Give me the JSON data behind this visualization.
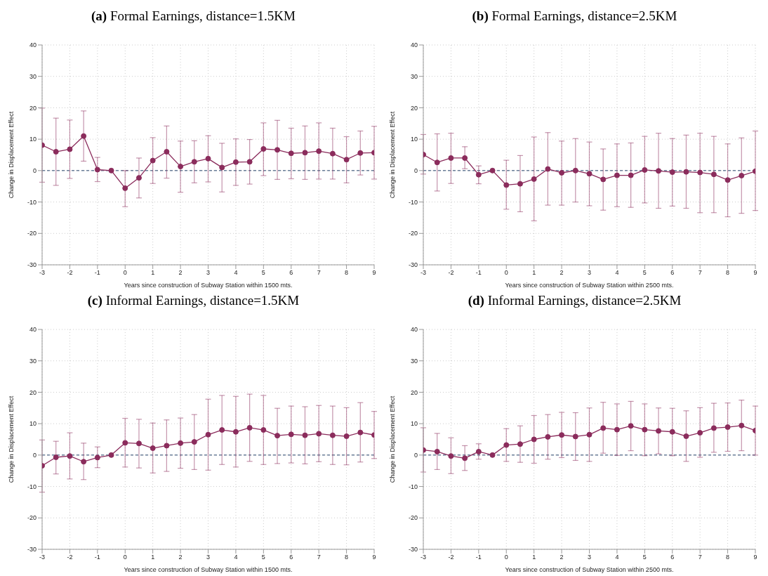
{
  "chart_data": [
    {
      "type": "line",
      "title": "(a) Formal Earnings, distance=1.5KM",
      "xlabel": "Years since construction of Subway Station within 1500 mts.",
      "ylabel": "Change in Displacement Effect",
      "x": [
        -3,
        -2.5,
        -2,
        -1.5,
        -1,
        -0.5,
        0,
        0.5,
        1,
        1.5,
        2,
        2.5,
        3,
        3.5,
        4,
        4.5,
        5,
        5.5,
        6,
        6.5,
        7,
        7.5,
        8,
        8.5,
        9
      ],
      "xlim": [
        -3,
        9
      ],
      "xticks": [
        -3,
        -2,
        -1,
        0,
        1,
        2,
        3,
        4,
        5,
        6,
        7,
        8,
        9
      ],
      "ylim": [
        -30,
        40
      ],
      "yticks": [
        -30,
        -20,
        -10,
        0,
        10,
        20,
        30,
        40
      ],
      "grid": true,
      "marker": "circle",
      "line_style": "solid",
      "series": [
        {
          "color": "#8b2c5c",
          "values": [
            8.1,
            6.0,
            6.8,
            11.0,
            0.3,
            0,
            -5.6,
            -2.3,
            3.2,
            6.0,
            1.3,
            2.8,
            3.8,
            1.0,
            2.7,
            2.8,
            6.9,
            6.6,
            5.5,
            5.7,
            6.2,
            5.4,
            3.5,
            5.6,
            5.7
          ],
          "errors": [
            [
              -3.7,
              19.9
            ],
            [
              -4.7,
              16.7
            ],
            [
              -2.5,
              16.1
            ],
            [
              3.0,
              19.0
            ],
            [
              -3.5,
              4.2
            ],
            null,
            [
              -11.5,
              0
            ],
            [
              -8.7,
              4.0
            ],
            [
              -4.1,
              10.5
            ],
            [
              -2.4,
              14.2
            ],
            [
              -6.9,
              9.4
            ],
            [
              -3.9,
              9.5
            ],
            [
              -3.6,
              11.1
            ],
            [
              -6.8,
              8.7
            ],
            [
              -4.7,
              10.1
            ],
            [
              -4.3,
              9.9
            ],
            [
              -1.6,
              15.2
            ],
            [
              -2.8,
              16.0
            ],
            [
              -2.6,
              13.5
            ],
            [
              -2.8,
              14.2
            ],
            [
              -2.7,
              15.2
            ],
            [
              -2.7,
              13.5
            ],
            [
              -3.9,
              10.8
            ],
            [
              -1.4,
              12.6
            ],
            [
              -2.7,
              14.1
            ]
          ]
        }
      ],
      "ref_lines": [
        {
          "axis": "y",
          "value": 0,
          "color": "#6b7f99",
          "line_style": "dashed"
        }
      ]
    },
    {
      "type": "line",
      "title": "(b) Formal Earnings, distance=2.5KM",
      "xlabel": "Years since construction of Subway Station within 2500 mts.",
      "ylabel": "Change in Displacement Effect",
      "x": [
        -3,
        -2.5,
        -2,
        -1.5,
        -1,
        -0.5,
        0,
        0.5,
        1,
        1.5,
        2,
        2.5,
        3,
        3.5,
        4,
        4.5,
        5,
        5.5,
        6,
        6.5,
        7,
        7.5,
        8,
        8.5,
        9
      ],
      "xlim": [
        -3,
        9
      ],
      "xticks": [
        -3,
        -2,
        -1,
        0,
        1,
        2,
        3,
        4,
        5,
        6,
        7,
        8,
        9
      ],
      "ylim": [
        -30,
        40
      ],
      "yticks": [
        -30,
        -20,
        -10,
        0,
        10,
        20,
        30,
        40
      ],
      "grid": true,
      "marker": "circle",
      "line_style": "solid",
      "series": [
        {
          "color": "#8b2c5c",
          "values": [
            5.1,
            2.6,
            4.0,
            4.0,
            -1.3,
            0,
            -4.6,
            -4.2,
            -2.7,
            0.5,
            -0.7,
            0,
            -1.0,
            -2.8,
            -1.5,
            -1.5,
            0.2,
            -0.1,
            -0.5,
            -0.4,
            -0.6,
            -1.2,
            -3.0,
            -1.6,
            -0.2
          ],
          "errors": [
            [
              -1.1,
              11.5
            ],
            [
              -6.5,
              11.7
            ],
            [
              -4.1,
              11.9
            ],
            [
              0.6,
              7.6
            ],
            [
              -4.2,
              1.5
            ],
            null,
            [
              -12.3,
              3.3
            ],
            [
              -13.1,
              4.8
            ],
            [
              -16.0,
              10.7
            ],
            [
              -11.0,
              12.1
            ],
            [
              -11.0,
              9.4
            ],
            [
              -10.0,
              10.2
            ],
            [
              -11.2,
              9.1
            ],
            [
              -12.6,
              6.9
            ],
            [
              -11.5,
              8.5
            ],
            [
              -11.7,
              8.8
            ],
            [
              -10.3,
              10.9
            ],
            [
              -12.0,
              11.9
            ],
            [
              -11.3,
              10.2
            ],
            [
              -12.0,
              11.3
            ],
            [
              -13.4,
              11.9
            ],
            [
              -13.4,
              10.9
            ],
            [
              -14.7,
              8.5
            ],
            [
              -13.6,
              10.4
            ],
            [
              -12.7,
              12.6
            ]
          ]
        }
      ],
      "ref_lines": [
        {
          "axis": "y",
          "value": 0,
          "color": "#6b7f99",
          "line_style": "dashed"
        }
      ]
    },
    {
      "type": "line",
      "title": "(c) Informal Earnings, distance=1.5KM",
      "xlabel": "Years since construction of Subway Station within 1500 mts.",
      "ylabel": "Change in Displacement Effect",
      "x": [
        -3,
        -2.5,
        -2,
        -1.5,
        -1,
        -0.5,
        0,
        0.5,
        1,
        1.5,
        2,
        2.5,
        3,
        3.5,
        4,
        4.5,
        5,
        5.5,
        6,
        6.5,
        7,
        7.5,
        8,
        8.5,
        9
      ],
      "xlim": [
        -3,
        9
      ],
      "xticks": [
        -3,
        -2,
        -1,
        0,
        1,
        2,
        3,
        4,
        5,
        6,
        7,
        8,
        9
      ],
      "ylim": [
        -30,
        40
      ],
      "yticks": [
        -30,
        -20,
        -10,
        0,
        10,
        20,
        30,
        40
      ],
      "grid": true,
      "marker": "circle",
      "line_style": "solid",
      "series": [
        {
          "color": "#8b2c5c",
          "values": [
            -3.4,
            -0.7,
            -0.3,
            -2.1,
            -0.8,
            0,
            3.9,
            3.7,
            2.2,
            3.0,
            3.8,
            4.2,
            6.5,
            8.0,
            7.4,
            8.7,
            8.0,
            6.2,
            6.6,
            6.3,
            6.8,
            6.3,
            6.0,
            7.2,
            6.4
          ],
          "errors": [
            [
              -11.8,
              4.8
            ],
            [
              -6.0,
              4.4
            ],
            [
              -7.6,
              7.1
            ],
            [
              -7.8,
              3.8
            ],
            [
              -4.0,
              2.6
            ],
            null,
            [
              -3.8,
              11.7
            ],
            [
              -4.1,
              11.4
            ],
            [
              -5.7,
              10.2
            ],
            [
              -5.2,
              11.2
            ],
            [
              -4.2,
              11.8
            ],
            [
              -4.6,
              12.9
            ],
            [
              -4.8,
              17.8
            ],
            [
              -3.0,
              19.0
            ],
            [
              -3.8,
              18.7
            ],
            [
              -2.0,
              19.4
            ],
            [
              -3.0,
              19.0
            ],
            [
              -2.7,
              14.9
            ],
            [
              -2.5,
              15.6
            ],
            [
              -2.8,
              15.4
            ],
            [
              -2.1,
              15.8
            ],
            [
              -3.0,
              15.6
            ],
            [
              -3.1,
              15.1
            ],
            [
              -2.2,
              16.7
            ],
            [
              -1.1,
              13.9
            ]
          ]
        }
      ],
      "ref_lines": [
        {
          "axis": "y",
          "value": 0,
          "color": "#6b7f99",
          "line_style": "dashed"
        }
      ]
    },
    {
      "type": "line",
      "title": "(d) Informal Earnings, distance=2.5KM",
      "xlabel": "Years since construction of Subway Station within 2500 mts.",
      "ylabel": "Change in Displacement Effect",
      "x": [
        -3,
        -2.5,
        -2,
        -1.5,
        -1,
        -0.5,
        0,
        0.5,
        1,
        1.5,
        2,
        2.5,
        3,
        3.5,
        4,
        4.5,
        5,
        5.5,
        6,
        6.5,
        7,
        7.5,
        8,
        8.5,
        9
      ],
      "xlim": [
        -3,
        9
      ],
      "xticks": [
        -3,
        -2,
        -1,
        0,
        1,
        2,
        3,
        4,
        5,
        6,
        7,
        8,
        9
      ],
      "ylim": [
        -30,
        40
      ],
      "yticks": [
        -30,
        -20,
        -10,
        0,
        10,
        20,
        30,
        40
      ],
      "grid": true,
      "marker": "circle",
      "line_style": "solid",
      "series": [
        {
          "color": "#8b2c5c",
          "values": [
            1.6,
            1.1,
            -0.3,
            -1.0,
            1.1,
            0,
            3.2,
            3.5,
            5.0,
            5.8,
            6.4,
            5.9,
            6.5,
            8.6,
            8.1,
            9.3,
            8.1,
            7.7,
            7.4,
            6.0,
            7.1,
            8.6,
            8.9,
            9.4,
            7.8
          ],
          "errors": [
            [
              -5.4,
              8.7
            ],
            [
              -4.6,
              6.9
            ],
            [
              -5.9,
              5.5
            ],
            [
              -4.9,
              3.0
            ],
            [
              -1.3,
              3.6
            ],
            null,
            [
              -2.0,
              8.4
            ],
            [
              -2.3,
              9.3
            ],
            [
              -2.6,
              12.6
            ],
            [
              -1.3,
              12.9
            ],
            [
              -0.8,
              13.6
            ],
            [
              -1.7,
              13.5
            ],
            [
              -2.0,
              15.0
            ],
            [
              0.6,
              16.8
            ],
            [
              -0.1,
              16.3
            ],
            [
              1.4,
              17.1
            ],
            [
              -0.2,
              16.3
            ],
            [
              0.4,
              15.0
            ],
            [
              -0.2,
              14.9
            ],
            [
              -2.0,
              14.1
            ],
            [
              -0.7,
              15.1
            ],
            [
              0.9,
              16.5
            ],
            [
              1.2,
              16.6
            ],
            [
              1.4,
              17.5
            ],
            [
              0,
              15.6
            ]
          ]
        }
      ],
      "ref_lines": [
        {
          "axis": "y",
          "value": 0,
          "color": "#6b7f99",
          "line_style": "dashed"
        }
      ]
    }
  ]
}
